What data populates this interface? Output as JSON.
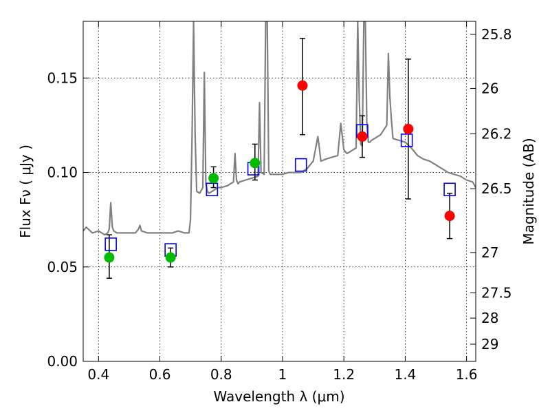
{
  "chart_data": {
    "type": "scatter",
    "xlabel": "Wavelength  λ (μm)",
    "ylabel": "Flux  Fν  ( μJy )",
    "y2label": "Magnitude (AB)",
    "xlim": [
      0.35,
      1.63
    ],
    "ylim": [
      0.0,
      0.18
    ],
    "grid": true,
    "x_ticks": [
      0.4,
      0.6,
      0.8,
      1.0,
      1.2,
      1.4,
      1.6
    ],
    "x_tick_labels": [
      "0.4",
      "0.6",
      "0.8",
      "1",
      "1.2",
      "1.4",
      "1.6"
    ],
    "y_ticks": [
      0.0,
      0.05,
      0.1,
      0.15
    ],
    "y_tick_labels": [
      "0.00",
      "0.05",
      "0.10",
      "0.15"
    ],
    "y2_ticks": [
      {
        "label": "25.8",
        "flux": 0.1731
      },
      {
        "label": "26",
        "flux": 0.1445
      },
      {
        "label": "26.2",
        "flux": 0.1205
      },
      {
        "label": "26.5",
        "flux": 0.0914
      },
      {
        "label": "27",
        "flux": 0.0576
      },
      {
        "label": "27.5",
        "flux": 0.0363
      },
      {
        "label": "28",
        "flux": 0.0229
      },
      {
        "label": "29",
        "flux": 0.0091
      }
    ],
    "colors": {
      "spectrum": "#808080",
      "model": "#0000ee",
      "green": "#00bb00",
      "red": "#ff0000",
      "errorbar": "#000000",
      "grid": "#000000"
    },
    "spectrum": {
      "x": [
        0.35,
        0.36,
        0.38,
        0.4,
        0.42,
        0.43,
        0.435,
        0.44,
        0.445,
        0.45,
        0.46,
        0.48,
        0.5,
        0.52,
        0.53,
        0.535,
        0.54,
        0.56,
        0.58,
        0.6,
        0.62,
        0.64,
        0.66,
        0.68,
        0.695,
        0.7,
        0.705,
        0.71,
        0.715,
        0.72,
        0.73,
        0.74,
        0.745,
        0.75,
        0.755,
        0.76,
        0.77,
        0.78,
        0.79,
        0.8,
        0.82,
        0.84,
        0.845,
        0.85,
        0.855,
        0.86,
        0.88,
        0.9,
        0.92,
        0.925,
        0.93,
        0.94,
        0.945,
        0.95,
        0.955,
        0.96,
        0.98,
        1.0,
        1.02,
        1.04,
        1.06,
        1.08,
        1.1,
        1.115,
        1.12,
        1.125,
        1.14,
        1.16,
        1.18,
        1.19,
        1.2,
        1.21,
        1.22,
        1.23,
        1.24,
        1.245,
        1.25,
        1.255,
        1.26,
        1.265,
        1.27,
        1.275,
        1.28,
        1.285,
        1.29,
        1.3,
        1.32,
        1.34,
        1.345,
        1.35,
        1.355,
        1.36,
        1.38,
        1.4,
        1.42,
        1.44,
        1.46,
        1.48,
        1.5,
        1.52,
        1.54,
        1.56,
        1.58,
        1.6,
        1.62,
        1.63
      ],
      "y": [
        0.069,
        0.071,
        0.068,
        0.069,
        0.067,
        0.068,
        0.07,
        0.084,
        0.071,
        0.069,
        0.068,
        0.068,
        0.068,
        0.068,
        0.07,
        0.072,
        0.069,
        0.068,
        0.068,
        0.068,
        0.068,
        0.068,
        0.069,
        0.068,
        0.068,
        0.075,
        0.12,
        0.18,
        0.12,
        0.09,
        0.089,
        0.092,
        0.153,
        0.094,
        0.09,
        0.089,
        0.09,
        0.091,
        0.092,
        0.092,
        0.093,
        0.095,
        0.11,
        0.096,
        0.094,
        0.095,
        0.096,
        0.097,
        0.098,
        0.137,
        0.1,
        0.099,
        0.18,
        0.18,
        0.101,
        0.099,
        0.099,
        0.099,
        0.1,
        0.1,
        0.1,
        0.102,
        0.106,
        0.119,
        0.113,
        0.106,
        0.107,
        0.108,
        0.109,
        0.126,
        0.112,
        0.11,
        0.111,
        0.112,
        0.113,
        0.18,
        0.14,
        0.115,
        0.114,
        0.18,
        0.18,
        0.125,
        0.116,
        0.116,
        0.117,
        0.118,
        0.12,
        0.125,
        0.163,
        0.14,
        0.128,
        0.118,
        0.117,
        0.116,
        0.113,
        0.109,
        0.107,
        0.106,
        0.104,
        0.102,
        0.1,
        0.099,
        0.098,
        0.096,
        0.095,
        0.092
      ]
    },
    "model_points": {
      "x": [
        0.44,
        0.635,
        0.77,
        0.905,
        1.06,
        1.26,
        1.405,
        1.545
      ],
      "y": [
        0.062,
        0.059,
        0.091,
        0.102,
        0.104,
        0.122,
        0.117,
        0.091
      ]
    },
    "green_points": {
      "x": [
        0.435,
        0.635,
        0.775,
        0.91
      ],
      "y": [
        0.055,
        0.055,
        0.097,
        0.105
      ],
      "yerr_low": [
        0.044,
        0.05,
        0.092,
        0.096
      ],
      "yerr_high": [
        0.067,
        0.06,
        0.103,
        0.115
      ]
    },
    "red_points": {
      "x": [
        1.065,
        1.26,
        1.41,
        1.545
      ],
      "y": [
        0.146,
        0.119,
        0.123,
        0.077
      ],
      "yerr_low": [
        0.12,
        0.108,
        0.086,
        0.065
      ],
      "yerr_high": [
        0.171,
        0.13,
        0.16,
        0.089
      ]
    }
  }
}
